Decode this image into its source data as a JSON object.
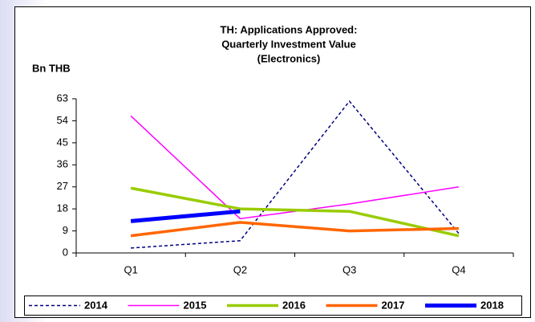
{
  "chart_data": {
    "type": "line",
    "title": [
      "TH: Applications Approved:",
      "Quarterly Investment Value",
      "(Electronics)"
    ],
    "ylabel": "Bn THB",
    "categories": [
      "Q1",
      "Q2",
      "Q3",
      "Q4"
    ],
    "ylim": [
      0,
      63
    ],
    "yticks": [
      0,
      9,
      18,
      27,
      36,
      45,
      54,
      63
    ],
    "legend": "bottom",
    "series": [
      {
        "name": "2014",
        "color": "#000080",
        "width": 1.5,
        "dash": "4 3",
        "values": [
          2,
          5,
          62,
          8
        ]
      },
      {
        "name": "2015",
        "color": "#ff00ff",
        "width": 1.5,
        "values": [
          56,
          14,
          20,
          27
        ]
      },
      {
        "name": "2016",
        "color": "#99cc00",
        "width": 3.5,
        "values": [
          26.5,
          18,
          17,
          7
        ]
      },
      {
        "name": "2017",
        "color": "#ff6600",
        "width": 3.5,
        "values": [
          7,
          12.5,
          9,
          10
        ]
      },
      {
        "name": "2018",
        "color": "#0000ff",
        "width": 5,
        "values": [
          13,
          17,
          null,
          null
        ]
      }
    ]
  }
}
